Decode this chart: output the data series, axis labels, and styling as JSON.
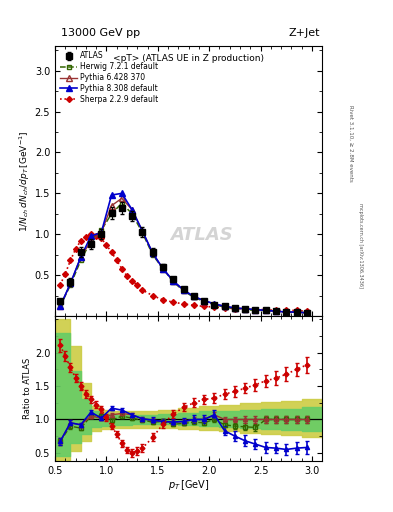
{
  "title_top": "13000 GeV pp",
  "title_right": "Z+Jet",
  "plot_title": "<pT> (ATLAS UE in Z production)",
  "ylabel_main": "1/N_{ch} dN_{ch}/dp_{T} [GeV^{-1}]",
  "ylabel_ratio": "Ratio to ATLAS",
  "xlabel": "p_{T} [GeV]",
  "right_label": "Rivet 3.1.10, ≥ 2.8M events",
  "right_label2": "mcplots.cern.ch [arXiv:1306.3436]",
  "watermark": "ATLAS",
  "xlim": [
    0.5,
    3.1
  ],
  "ylim_main": [
    0.0,
    3.3
  ],
  "ylim_ratio": [
    0.38,
    2.55
  ],
  "atlas_x": [
    0.55,
    0.65,
    0.75,
    0.85,
    0.95,
    1.05,
    1.15,
    1.25,
    1.35,
    1.45,
    1.55,
    1.65,
    1.75,
    1.85,
    1.95,
    2.05,
    2.15,
    2.25,
    2.35,
    2.45,
    2.55,
    2.65,
    2.75,
    2.85,
    2.95
  ],
  "atlas_y": [
    0.18,
    0.42,
    0.78,
    0.88,
    1.0,
    1.26,
    1.32,
    1.22,
    1.03,
    0.78,
    0.6,
    0.45,
    0.33,
    0.24,
    0.19,
    0.14,
    0.12,
    0.1,
    0.09,
    0.08,
    0.07,
    0.06,
    0.05,
    0.05,
    0.04
  ],
  "atlas_yerr": [
    0.03,
    0.05,
    0.06,
    0.06,
    0.06,
    0.07,
    0.07,
    0.06,
    0.06,
    0.05,
    0.04,
    0.03,
    0.03,
    0.02,
    0.02,
    0.02,
    0.01,
    0.01,
    0.01,
    0.01,
    0.01,
    0.01,
    0.01,
    0.005,
    0.005
  ],
  "herwig_x": [
    0.55,
    0.65,
    0.75,
    0.85,
    0.95,
    1.05,
    1.15,
    1.25,
    1.35,
    1.45,
    1.55,
    1.65,
    1.75,
    1.85,
    1.95,
    2.05,
    2.15,
    2.25,
    2.35,
    2.45,
    2.55,
    2.65,
    2.75,
    2.85,
    2.95
  ],
  "herwig_y": [
    0.12,
    0.38,
    0.68,
    0.92,
    1.05,
    1.25,
    1.38,
    1.25,
    1.02,
    0.75,
    0.58,
    0.42,
    0.31,
    0.23,
    0.18,
    0.14,
    0.11,
    0.09,
    0.08,
    0.07,
    0.07,
    0.06,
    0.05,
    0.05,
    0.04
  ],
  "pythia6_x": [
    0.55,
    0.65,
    0.75,
    0.85,
    0.95,
    1.05,
    1.15,
    1.25,
    1.35,
    1.45,
    1.55,
    1.65,
    1.75,
    1.85,
    1.95,
    2.05,
    2.15,
    2.25,
    2.35,
    2.45,
    2.55,
    2.65,
    2.75,
    2.85,
    2.95
  ],
  "pythia6_y": [
    0.12,
    0.4,
    0.72,
    0.92,
    1.02,
    1.35,
    1.44,
    1.3,
    1.04,
    0.77,
    0.58,
    0.43,
    0.32,
    0.24,
    0.19,
    0.15,
    0.12,
    0.1,
    0.09,
    0.08,
    0.07,
    0.06,
    0.05,
    0.05,
    0.04
  ],
  "pythia8_x": [
    0.55,
    0.65,
    0.75,
    0.85,
    0.95,
    1.05,
    1.15,
    1.25,
    1.35,
    1.45,
    1.55,
    1.65,
    1.75,
    1.85,
    1.95,
    2.05,
    2.15,
    2.25,
    2.35,
    2.45,
    2.55,
    2.65,
    2.75,
    2.85,
    2.95
  ],
  "pythia8_y": [
    0.12,
    0.4,
    0.72,
    0.98,
    1.02,
    1.48,
    1.5,
    1.3,
    1.04,
    0.77,
    0.58,
    0.43,
    0.32,
    0.24,
    0.19,
    0.15,
    0.12,
    0.1,
    0.09,
    0.08,
    0.07,
    0.06,
    0.05,
    0.05,
    0.04
  ],
  "sherpa_x": [
    0.55,
    0.6,
    0.65,
    0.7,
    0.75,
    0.8,
    0.85,
    0.9,
    0.95,
    1.0,
    1.05,
    1.1,
    1.15,
    1.2,
    1.25,
    1.3,
    1.35,
    1.45,
    1.55,
    1.65,
    1.75,
    1.85,
    1.95,
    2.05,
    2.15,
    2.25,
    2.35,
    2.45,
    2.55,
    2.65,
    2.75,
    2.85,
    2.95
  ],
  "sherpa_y": [
    0.38,
    0.52,
    0.68,
    0.82,
    0.92,
    0.97,
    1.0,
    0.98,
    0.95,
    0.87,
    0.78,
    0.68,
    0.58,
    0.49,
    0.43,
    0.38,
    0.32,
    0.25,
    0.2,
    0.17,
    0.15,
    0.13,
    0.12,
    0.11,
    0.1,
    0.09,
    0.09,
    0.08,
    0.08,
    0.07,
    0.07,
    0.07,
    0.06
  ],
  "ratio_herwig_x": [
    0.55,
    0.65,
    0.75,
    0.85,
    0.95,
    1.05,
    1.15,
    1.25,
    1.35,
    1.45,
    1.55,
    1.65,
    1.75,
    1.85,
    1.95,
    2.05,
    2.15,
    2.25,
    2.35,
    2.45,
    2.55,
    2.65,
    2.75,
    2.85,
    2.95
  ],
  "ratio_herwig_y": [
    0.67,
    0.9,
    0.87,
    1.05,
    1.05,
    0.99,
    1.05,
    1.02,
    0.99,
    0.96,
    0.97,
    0.93,
    0.94,
    0.96,
    0.95,
    1.0,
    0.92,
    0.9,
    0.89,
    0.88,
    1.0,
    1.0,
    1.0,
    1.0,
    1.0
  ],
  "ratio_herwig_yerr": [
    0.05,
    0.04,
    0.03,
    0.03,
    0.03,
    0.03,
    0.03,
    0.03,
    0.03,
    0.03,
    0.03,
    0.03,
    0.03,
    0.03,
    0.03,
    0.04,
    0.04,
    0.04,
    0.05,
    0.05,
    0.05,
    0.05,
    0.05,
    0.05,
    0.05
  ],
  "ratio_pythia6_x": [
    0.55,
    0.65,
    0.75,
    0.85,
    0.95,
    1.05,
    1.15,
    1.25,
    1.35,
    1.45,
    1.55,
    1.65,
    1.75,
    1.85,
    1.95,
    2.05,
    2.15,
    2.25,
    2.35,
    2.45,
    2.55,
    2.65,
    2.75,
    2.85,
    2.95
  ],
  "ratio_pythia6_y": [
    0.67,
    0.95,
    0.92,
    1.05,
    1.02,
    1.07,
    1.09,
    1.07,
    1.01,
    0.99,
    0.97,
    0.96,
    0.97,
    1.0,
    1.0,
    1.07,
    1.0,
    1.0,
    1.0,
    1.0,
    1.0,
    1.0,
    1.0,
    1.0,
    1.0
  ],
  "ratio_pythia6_yerr": [
    0.05,
    0.04,
    0.03,
    0.03,
    0.03,
    0.03,
    0.03,
    0.03,
    0.03,
    0.03,
    0.03,
    0.03,
    0.03,
    0.03,
    0.03,
    0.04,
    0.04,
    0.04,
    0.05,
    0.05,
    0.05,
    0.05,
    0.05,
    0.05,
    0.05
  ],
  "ratio_pythia8_x": [
    0.55,
    0.65,
    0.75,
    0.85,
    0.95,
    1.05,
    1.15,
    1.25,
    1.35,
    1.45,
    1.55,
    1.65,
    1.75,
    1.85,
    1.95,
    2.05,
    2.15,
    2.25,
    2.35,
    2.45,
    2.55,
    2.65,
    2.75,
    2.85,
    2.95
  ],
  "ratio_pythia8_y": [
    0.67,
    0.95,
    0.92,
    1.11,
    1.02,
    1.17,
    1.14,
    1.07,
    1.01,
    0.99,
    0.97,
    0.96,
    0.97,
    1.0,
    1.0,
    1.07,
    0.83,
    0.75,
    0.68,
    0.63,
    0.58,
    0.57,
    0.55,
    0.57,
    0.58
  ],
  "ratio_pythia8_yerr": [
    0.05,
    0.04,
    0.03,
    0.03,
    0.03,
    0.03,
    0.03,
    0.03,
    0.03,
    0.04,
    0.04,
    0.05,
    0.05,
    0.06,
    0.06,
    0.07,
    0.07,
    0.08,
    0.08,
    0.08,
    0.08,
    0.08,
    0.08,
    0.09,
    0.1
  ],
  "ratio_sherpa_x": [
    0.55,
    0.6,
    0.65,
    0.7,
    0.75,
    0.8,
    0.85,
    0.9,
    0.95,
    1.0,
    1.05,
    1.1,
    1.15,
    1.2,
    1.25,
    1.3,
    1.35,
    1.45,
    1.55,
    1.65,
    1.75,
    1.85,
    1.95,
    2.05,
    2.15,
    2.25,
    2.35,
    2.45,
    2.55,
    2.65,
    2.75,
    2.85,
    2.95
  ],
  "ratio_sherpa_y": [
    2.11,
    1.95,
    1.78,
    1.62,
    1.5,
    1.38,
    1.3,
    1.22,
    1.15,
    1.03,
    0.9,
    0.78,
    0.64,
    0.54,
    0.5,
    0.53,
    0.57,
    0.73,
    0.93,
    1.08,
    1.18,
    1.25,
    1.3,
    1.32,
    1.38,
    1.42,
    1.47,
    1.52,
    1.58,
    1.62,
    1.68,
    1.75,
    1.82
  ],
  "ratio_sherpa_yerr": [
    0.1,
    0.08,
    0.07,
    0.06,
    0.06,
    0.06,
    0.05,
    0.05,
    0.05,
    0.05,
    0.05,
    0.05,
    0.05,
    0.05,
    0.06,
    0.06,
    0.06,
    0.06,
    0.06,
    0.06,
    0.06,
    0.07,
    0.07,
    0.07,
    0.08,
    0.08,
    0.08,
    0.09,
    0.09,
    0.1,
    0.1,
    0.1,
    0.12
  ],
  "band_x_edges": [
    0.5,
    0.65,
    0.75,
    0.85,
    0.95,
    1.05,
    1.15,
    1.25,
    1.35,
    1.5,
    1.7,
    1.9,
    2.1,
    2.3,
    2.5,
    2.7,
    2.9,
    3.1
  ],
  "band_inner_low": [
    0.45,
    0.65,
    0.78,
    0.88,
    0.9,
    0.92,
    0.92,
    0.93,
    0.93,
    0.93,
    0.92,
    0.9,
    0.88,
    0.87,
    0.86,
    0.84,
    0.83,
    0.83
  ],
  "band_inner_high": [
    2.3,
    1.72,
    1.3,
    1.12,
    1.08,
    1.07,
    1.07,
    1.07,
    1.07,
    1.08,
    1.1,
    1.12,
    1.13,
    1.14,
    1.15,
    1.16,
    1.18,
    1.18
  ],
  "band_outer_low": [
    0.38,
    0.52,
    0.68,
    0.82,
    0.86,
    0.87,
    0.87,
    0.87,
    0.87,
    0.87,
    0.86,
    0.84,
    0.82,
    0.8,
    0.78,
    0.76,
    0.74,
    0.74
  ],
  "band_outer_high": [
    2.5,
    2.1,
    1.55,
    1.2,
    1.14,
    1.12,
    1.12,
    1.12,
    1.12,
    1.14,
    1.17,
    1.2,
    1.22,
    1.24,
    1.26,
    1.28,
    1.3,
    1.3
  ],
  "color_atlas": "#000000",
  "color_herwig": "#336600",
  "color_pythia6": "#993333",
  "color_pythia8": "#0000cc",
  "color_sherpa": "#cc0000",
  "color_band_inner": "#66cc66",
  "color_band_outer": "#cccc44"
}
